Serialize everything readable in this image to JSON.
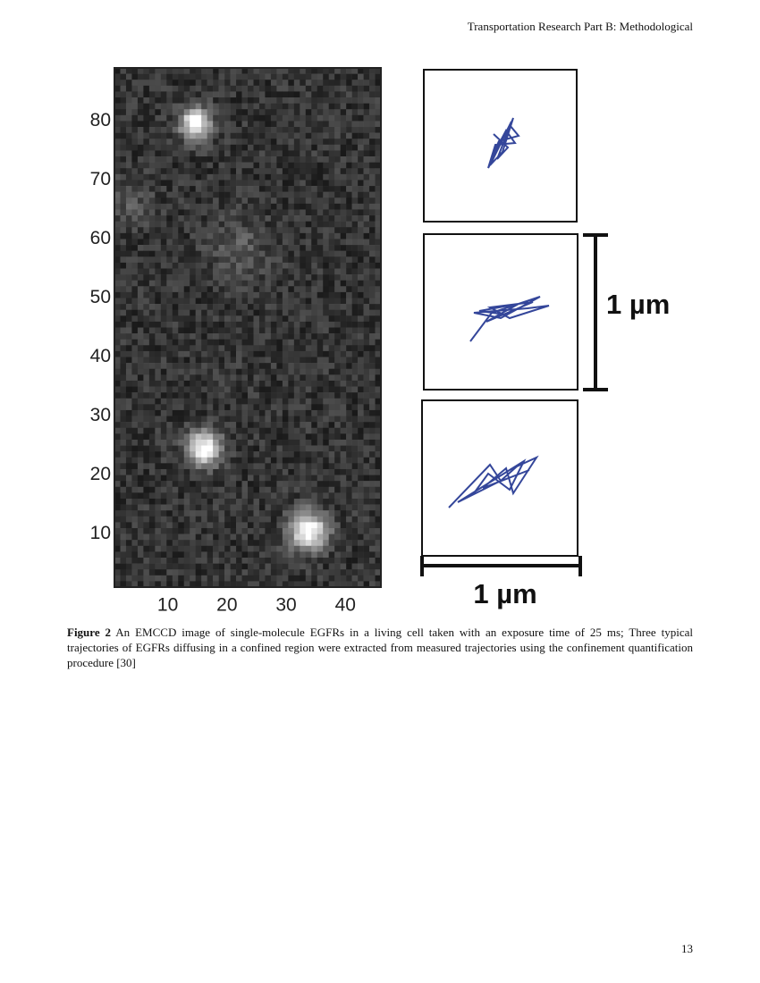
{
  "header": {
    "journal": "Transportation Research Part B: Methodological"
  },
  "figure": {
    "image": {
      "xlim": [
        1,
        46
      ],
      "ylim": [
        1,
        89
      ],
      "xticks": [
        10,
        20,
        30,
        40
      ],
      "yticks": [
        10,
        20,
        30,
        40,
        50,
        60,
        70,
        80
      ]
    },
    "vertical_scale_label": "1 µm",
    "horizontal_scale_label": "1 µm",
    "caption": {
      "label": "Figure 2",
      "text": "An EMCCD image of single-molecule EGFRs in a living cell taken with an exposure time of 25 ms; Three typical trajectories of EGFRs diffusing in a confined region were extracted from measured trajectories using the confinement quantification procedure [30]"
    }
  },
  "footer": {
    "page_number": "13"
  }
}
